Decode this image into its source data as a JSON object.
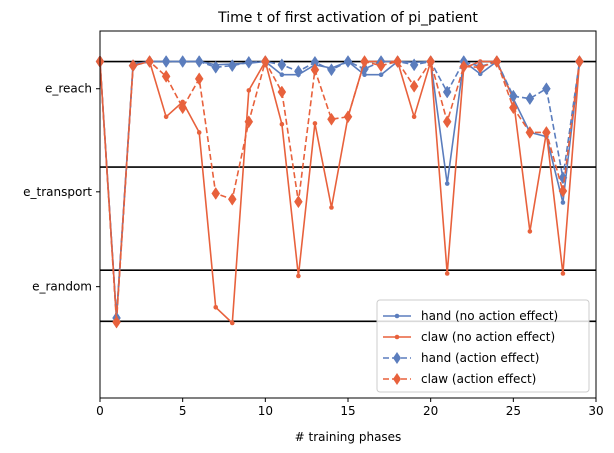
{
  "chart_data": {
    "type": "line",
    "title": "Time t of first activation of pi_patient",
    "xlabel": "# training phases",
    "ylabel": "",
    "xlim": [
      0,
      30
    ],
    "ylim": [
      -0.25,
      4.2
    ],
    "x_ticks": [
      0,
      5,
      10,
      15,
      20,
      25,
      30
    ],
    "y_tick_positions": [
      3.5,
      2.25,
      1.1
    ],
    "y_tick_labels": [
      "e_reach",
      "e_transport",
      "e_random"
    ],
    "boundaries": [
      3.83,
      2.55,
      1.3,
      0.68
    ],
    "grid": false,
    "legend_position": "lower right",
    "x": [
      0,
      1,
      2,
      3,
      4,
      5,
      6,
      7,
      8,
      9,
      10,
      11,
      12,
      13,
      14,
      15,
      16,
      17,
      18,
      19,
      20,
      21,
      22,
      23,
      24,
      25,
      26,
      27,
      28,
      29
    ],
    "series": [
      {
        "name": "hand (no action effect)",
        "color": "#5b7dbd",
        "style": "solid",
        "marker": "dot",
        "values": [
          3.83,
          0.72,
          3.8,
          3.83,
          3.83,
          3.83,
          3.83,
          3.79,
          3.8,
          3.81,
          3.83,
          3.67,
          3.67,
          3.79,
          3.75,
          3.83,
          3.67,
          3.67,
          3.83,
          3.82,
          3.83,
          2.35,
          3.83,
          3.68,
          3.83,
          3.38,
          2.97,
          2.92,
          2.12,
          3.83
        ]
      },
      {
        "name": "claw (no action effect)",
        "color": "#e8613c",
        "style": "solid",
        "marker": "dot",
        "values": [
          3.83,
          0.72,
          3.78,
          3.83,
          3.16,
          3.34,
          2.97,
          0.85,
          0.66,
          3.48,
          3.83,
          3.07,
          1.23,
          3.08,
          2.06,
          3.16,
          3.83,
          3.83,
          3.83,
          3.16,
          3.83,
          1.26,
          3.75,
          3.83,
          3.83,
          3.38,
          1.77,
          2.97,
          1.26,
          3.83
        ]
      },
      {
        "name": "hand (action effect)",
        "color": "#5b7dbd",
        "style": "dashed",
        "marker": "diamond",
        "values": [
          3.83,
          0.72,
          3.78,
          3.83,
          3.83,
          3.83,
          3.83,
          3.76,
          3.78,
          3.82,
          3.83,
          3.79,
          3.71,
          3.82,
          3.73,
          3.83,
          3.74,
          3.83,
          3.83,
          3.79,
          3.83,
          3.46,
          3.83,
          3.77,
          3.83,
          3.41,
          3.38,
          3.5,
          2.42,
          3.83
        ]
      },
      {
        "name": "claw (action effect)",
        "color": "#e8613c",
        "style": "dashed",
        "marker": "diamond",
        "values": [
          3.83,
          0.67,
          3.78,
          3.83,
          3.65,
          3.27,
          3.62,
          2.23,
          2.16,
          3.1,
          3.83,
          3.46,
          2.13,
          3.73,
          3.13,
          3.16,
          3.83,
          3.78,
          3.83,
          3.53,
          3.83,
          3.1,
          3.77,
          3.76,
          3.83,
          3.27,
          2.97,
          2.97,
          2.26,
          3.83
        ]
      }
    ]
  }
}
